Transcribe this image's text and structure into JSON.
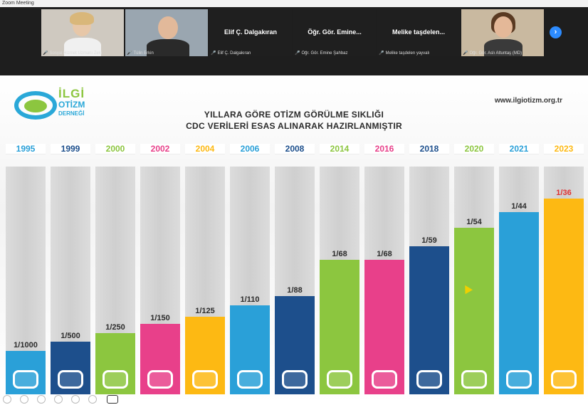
{
  "window": {
    "title": "Zoom Meeting"
  },
  "participants": [
    {
      "name": "Sosyal Hizmet Uzmanı Zeki",
      "type": "video"
    },
    {
      "name": "Tülin Erkin",
      "type": "video"
    },
    {
      "name": "Elif Ç. Dalgakıran",
      "display": "Elif Ç. Dalgakıran",
      "type": "name"
    },
    {
      "name": "Öğr. Gör. Emine Şahbaz",
      "display": "Öğr. Gör. Emine...",
      "type": "name"
    },
    {
      "name": "Melike taşdelen yayvalı",
      "display": "Melike taşdelen...",
      "type": "name"
    },
    {
      "name": "Öğr. Gör. Aslı Altuntaş (MD)",
      "type": "video"
    }
  ],
  "slide": {
    "logo": {
      "line1": "İLGİ",
      "line2": "OTİZM",
      "line3": "DERNEĞİ"
    },
    "website": "www.ilgiotizm.org.tr",
    "title1": "YILLARA GÖRE OTİZM GÖRÜLME SIKLIĞI",
    "title2": "CDC VERİLERİ ESAS ALINARAK HAZIRLANMIŞTIR"
  },
  "colors": {
    "blue": "#2aa0d8",
    "navy": "#1d4f8c",
    "green": "#8cc63f",
    "pink": "#e8408a",
    "orange": "#fdb913",
    "red_label": "#e03030"
  },
  "chart_data": {
    "type": "bar",
    "title": "YILLARA GÖRE OTİZM GÖRÜLME SIKLIĞI",
    "subtitle": "CDC VERİLERİ ESAS ALINARAK HAZIRLANMIŞTIR",
    "categories": [
      "1995",
      "1999",
      "2000",
      "2002",
      "2004",
      "2006",
      "2008",
      "2014",
      "2016",
      "2018",
      "2020",
      "2021",
      "2023"
    ],
    "labels": [
      "1/1000",
      "1/500",
      "1/250",
      "1/150",
      "1/125",
      "1/110",
      "1/88",
      "1/68",
      "1/68",
      "1/59",
      "1/54",
      "1/44",
      "1/36"
    ],
    "values": [
      0.001,
      0.002,
      0.004,
      0.00667,
      0.008,
      0.00909,
      0.01136,
      0.01471,
      0.01471,
      0.01695,
      0.01852,
      0.02273,
      0.02778
    ],
    "bar_fill_fraction": [
      0.19,
      0.23,
      0.27,
      0.31,
      0.34,
      0.39,
      0.43,
      0.59,
      0.59,
      0.65,
      0.73,
      0.8,
      0.86
    ],
    "bar_colors": [
      "blue",
      "navy",
      "green",
      "pink",
      "orange",
      "blue",
      "navy",
      "green",
      "pink",
      "navy",
      "green",
      "blue",
      "orange"
    ],
    "label_colors": [
      "default",
      "default",
      "default",
      "default",
      "default",
      "default",
      "default",
      "default",
      "default",
      "default",
      "default",
      "default",
      "red_label"
    ]
  }
}
